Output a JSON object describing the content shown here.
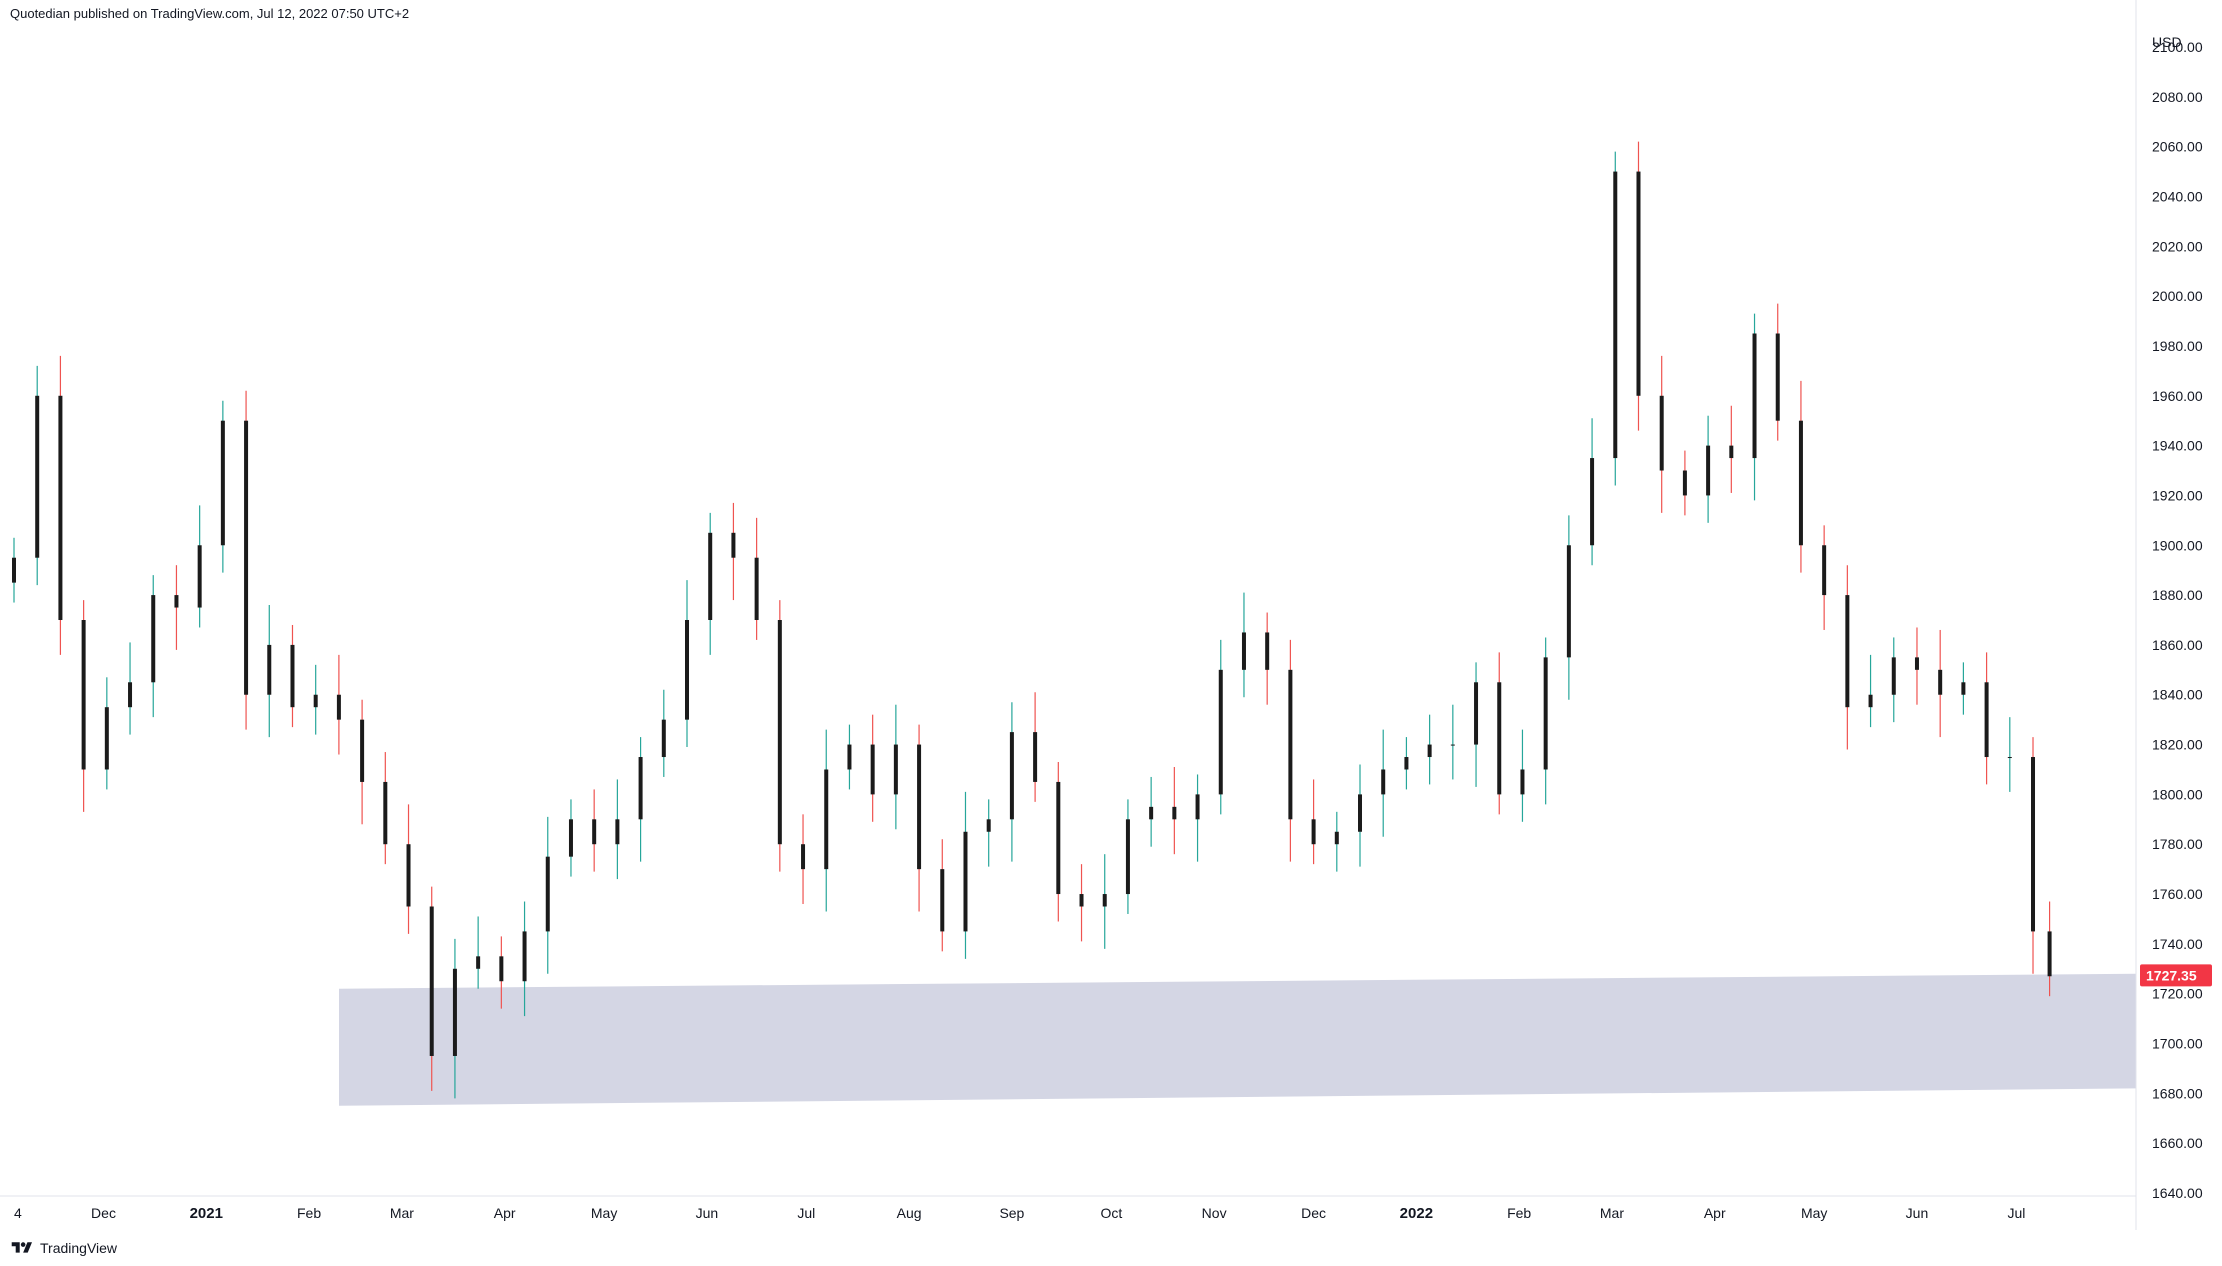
{
  "header": {
    "published_text": "Quotedian published on TradingView.com, Jul 12, 2022 07:50 UTC+2"
  },
  "footer": {
    "brand": "TradingView",
    "logo_icon": "tradingview-logo-icon"
  },
  "colors": {
    "up": "#26a69a",
    "down": "#ef5350",
    "body": "#1b1b1b",
    "zone": "#d4d6e4",
    "tag": "#f23645"
  },
  "chart_data": {
    "type": "candlestick",
    "currency": "USD",
    "last_price": "1727.35",
    "ylim": [
      1640,
      2100
    ],
    "y_ticks": [
      "2100.00",
      "2080.00",
      "2060.00",
      "2040.00",
      "2020.00",
      "2000.00",
      "1980.00",
      "1960.00",
      "1940.00",
      "1920.00",
      "1900.00",
      "1880.00",
      "1860.00",
      "1840.00",
      "1820.00",
      "1800.00",
      "1780.00",
      "1760.00",
      "1740.00",
      "1720.00",
      "1700.00",
      "1680.00",
      "1660.00",
      "1640.00"
    ],
    "x_ticks": [
      {
        "label": "4",
        "bold": false
      },
      {
        "label": "Dec",
        "bold": false
      },
      {
        "label": "2021",
        "bold": true
      },
      {
        "label": "Feb",
        "bold": false
      },
      {
        "label": "Mar",
        "bold": false
      },
      {
        "label": "Apr",
        "bold": false
      },
      {
        "label": "May",
        "bold": false
      },
      {
        "label": "Jun",
        "bold": false
      },
      {
        "label": "Jul",
        "bold": false
      },
      {
        "label": "Aug",
        "bold": false
      },
      {
        "label": "Sep",
        "bold": false
      },
      {
        "label": "Oct",
        "bold": false
      },
      {
        "label": "Nov",
        "bold": false
      },
      {
        "label": "Dec",
        "bold": false
      },
      {
        "label": "2022",
        "bold": true
      },
      {
        "label": "Feb",
        "bold": false
      },
      {
        "label": "Mar",
        "bold": false
      },
      {
        "label": "Apr",
        "bold": false
      },
      {
        "label": "May",
        "bold": false
      },
      {
        "label": "Jun",
        "bold": false
      },
      {
        "label": "Jul",
        "bold": false
      }
    ],
    "tick_dates": [
      "2020-11-04",
      "2020-12-01",
      "2021-01-01",
      "2021-02-01",
      "2021-03-01",
      "2021-04-01",
      "2021-05-01",
      "2021-06-01",
      "2021-07-01",
      "2021-08-01",
      "2021-09-01",
      "2021-10-01",
      "2021-11-01",
      "2021-12-01",
      "2022-01-01",
      "2022-02-01",
      "2022-03-01",
      "2022-04-01",
      "2022-05-01",
      "2022-06-01",
      "2022-07-01"
    ],
    "support_zone": {
      "start_date": "2021-02-15",
      "end_date": "2022-07-22",
      "top_start": 1722,
      "top_end": 1728,
      "bottom_start": 1675,
      "bottom_end": 1682
    },
    "series": [
      {
        "dates": [
          "2020-11-04",
          "2020-11-11",
          "2020-11-18",
          "2020-11-25",
          "2020-12-02",
          "2020-12-09",
          "2020-12-16",
          "2020-12-23",
          "2020-12-30",
          "2021-01-06",
          "2021-01-13",
          "2021-01-20",
          "2021-01-27",
          "2021-02-03",
          "2021-02-10",
          "2021-02-17",
          "2021-02-24",
          "2021-03-03",
          "2021-03-10",
          "2021-03-17",
          "2021-03-24",
          "2021-03-31",
          "2021-04-07",
          "2021-04-14",
          "2021-04-21",
          "2021-04-28",
          "2021-05-05",
          "2021-05-12",
          "2021-05-19",
          "2021-05-26",
          "2021-06-02",
          "2021-06-09",
          "2021-06-16",
          "2021-06-23",
          "2021-06-30",
          "2021-07-07",
          "2021-07-14",
          "2021-07-21",
          "2021-07-28",
          "2021-08-04",
          "2021-08-11",
          "2021-08-18",
          "2021-08-25",
          "2021-09-01",
          "2021-09-08",
          "2021-09-15",
          "2021-09-22",
          "2021-09-29",
          "2021-10-06",
          "2021-10-13",
          "2021-10-20",
          "2021-10-27",
          "2021-11-03",
          "2021-11-10",
          "2021-11-17",
          "2021-11-24",
          "2021-12-01",
          "2021-12-08",
          "2021-12-15",
          "2021-12-22",
          "2021-12-29",
          "2022-01-05",
          "2022-01-12",
          "2022-01-19",
          "2022-01-26",
          "2022-02-02",
          "2022-02-09",
          "2022-02-16",
          "2022-02-23",
          "2022-03-02",
          "2022-03-09",
          "2022-03-16",
          "2022-03-23",
          "2022-03-30",
          "2022-04-06",
          "2022-04-13",
          "2022-04-20",
          "2022-04-27",
          "2022-05-04",
          "2022-05-11",
          "2022-05-18",
          "2022-05-25",
          "2022-06-01",
          "2022-06-08",
          "2022-06-15",
          "2022-06-22",
          "2022-06-29",
          "2022-07-06",
          "2022-07-11"
        ],
        "closes": [
          1895,
          1960,
          1870,
          1810,
          1835,
          1845,
          1880,
          1875,
          1900,
          1950,
          1840,
          1860,
          1835,
          1840,
          1830,
          1805,
          1780,
          1755,
          1695,
          1730,
          1735,
          1725,
          1745,
          1775,
          1790,
          1780,
          1790,
          1815,
          1830,
          1870,
          1905,
          1895,
          1870,
          1780,
          1770,
          1810,
          1820,
          1800,
          1820,
          1770,
          1745,
          1785,
          1790,
          1825,
          1805,
          1760,
          1755,
          1760,
          1790,
          1795,
          1790,
          1800,
          1850,
          1865,
          1850,
          1790,
          1780,
          1785,
          1800,
          1810,
          1815,
          1820,
          1820,
          1845,
          1800,
          1810,
          1855,
          1900,
          1935,
          2050,
          1960,
          1930,
          1920,
          1940,
          1935,
          1985,
          1950,
          1900,
          1880,
          1835,
          1840,
          1855,
          1850,
          1840,
          1845,
          1815,
          1815,
          1745,
          1727
        ]
      }
    ]
  }
}
